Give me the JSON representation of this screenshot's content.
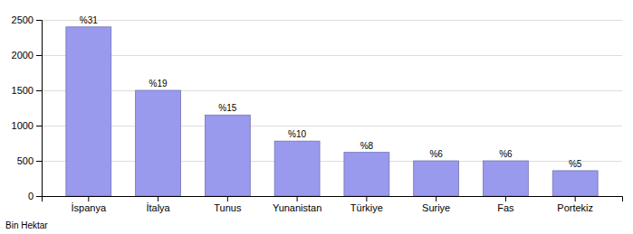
{
  "chart_data": {
    "type": "bar",
    "categories": [
      "İspanya",
      "İtalya",
      "Tunus",
      "Yunanistan",
      "Türkiye",
      "Suriye",
      "Fas",
      "Portekiz"
    ],
    "values": [
      2400,
      1500,
      1150,
      780,
      620,
      500,
      500,
      360
    ],
    "annotations": [
      "%31",
      "%19",
      "%15",
      "%10",
      "%8",
      "%6",
      "%6",
      "%5"
    ],
    "ylabel": "Bin Hektar",
    "color": "#9999ee",
    "ylim": [
      0,
      2500
    ],
    "yticks": [
      0,
      500,
      1000,
      1500,
      2000,
      2500
    ],
    "grid": true
  }
}
